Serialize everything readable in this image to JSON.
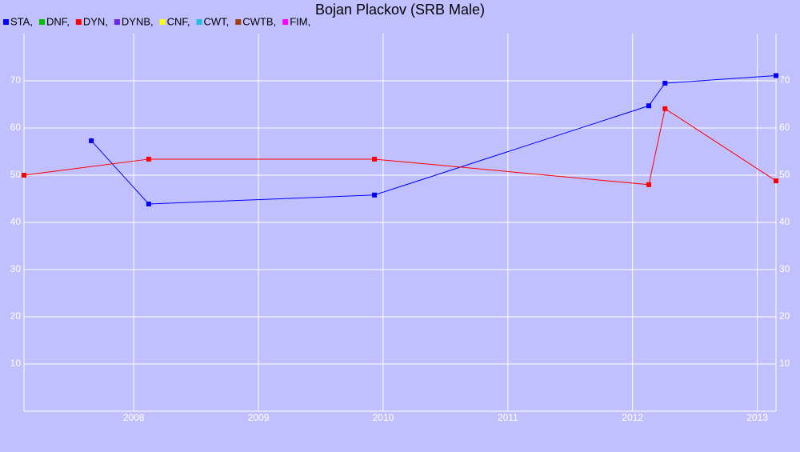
{
  "chart_data": {
    "type": "line",
    "title": "Bojan Plackov (SRB Male)",
    "series": [
      {
        "name": "STA,",
        "color": "#0000ff",
        "x": [
          2007.66,
          2008.12,
          2009.93,
          2012.13,
          2012.26,
          2013.15
        ],
        "values": [
          57.3,
          43.9,
          45.8,
          64.7,
          69.5,
          71.1
        ]
      },
      {
        "name": "DNF,",
        "color": "#00c000",
        "x": [],
        "values": []
      },
      {
        "name": "DYN,",
        "color": "#ff0000",
        "x": [
          2007.12,
          2008.12,
          2009.93,
          2012.13,
          2012.26,
          2013.15
        ],
        "values": [
          50.0,
          53.4,
          53.4,
          48.0,
          64.1,
          48.8
        ]
      },
      {
        "name": "DYNB,",
        "color": "#6a28e8",
        "x": [],
        "values": []
      },
      {
        "name": "CNF,",
        "color": "#ffff00",
        "x": [],
        "values": []
      },
      {
        "name": "CWT,",
        "color": "#20c0e0",
        "x": [],
        "values": []
      },
      {
        "name": "CWTB,",
        "color": "#a04010",
        "x": [],
        "values": []
      },
      {
        "name": "FIM,",
        "color": "#ff00ff",
        "x": [],
        "values": []
      }
    ],
    "xlim": [
      2007.12,
      2013.15
    ],
    "xticks": [
      2008,
      2009,
      2010,
      2011,
      2012,
      2013
    ],
    "ylim": [
      0,
      80
    ],
    "yticks": [
      10,
      20,
      30,
      40,
      50,
      60,
      70
    ],
    "grid": true
  }
}
